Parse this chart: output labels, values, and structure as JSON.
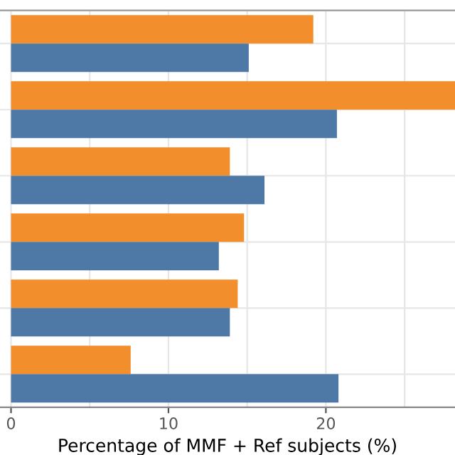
{
  "chart_data": {
    "type": "bar",
    "orientation": "horizontal",
    "xlabel": "Percentage of MMF + Ref subjects (%)",
    "categories": [
      null,
      null,
      null,
      null,
      null,
      null
    ],
    "series": [
      {
        "color": "#f28e2b",
        "values": [
          19.2,
          28.2,
          13.9,
          14.8,
          14.4,
          7.6
        ]
      },
      {
        "color": "#4e79a7",
        "values": [
          15.1,
          20.7,
          16.1,
          13.2,
          13.9,
          20.8
        ]
      }
    ],
    "xlim": [
      -0.7,
      28.2
    ],
    "xticks": [
      0,
      {
        "value": 5,
        "label": null
      },
      10,
      {
        "value": 15,
        "label": null
      },
      20,
      {
        "value": 25,
        "label": null
      }
    ],
    "grid": true,
    "tick_labels": "x"
  }
}
